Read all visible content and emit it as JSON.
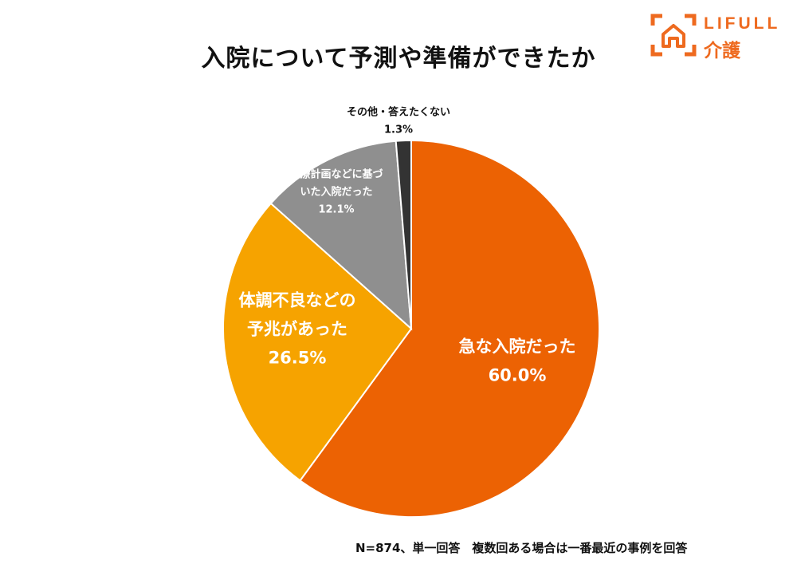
{
  "logo": {
    "word": "LIFULL",
    "sub": "介護",
    "accent": "#ee6a1f"
  },
  "note": "N=874、単一回答　複数回ある場合は一番最近の事例を回答",
  "chart_data": {
    "type": "pie",
    "title": "入院について予測や準備ができたか",
    "start": "12 o'clock, clockwise",
    "slices": [
      {
        "label_lines": [
          "急な入院だった"
        ],
        "value": 60.0,
        "value_label": "60.0%",
        "color": "#ec6203",
        "text_color": "#ffffff"
      },
      {
        "label_lines": [
          "体調不良などの",
          "予兆があった"
        ],
        "value": 26.5,
        "value_label": "26.5%",
        "color": "#f6a300",
        "text_color": "#ffffff"
      },
      {
        "label_lines": [
          "治療計画などに基づ",
          "いた入院だった"
        ],
        "value": 12.1,
        "value_label": "12.1%",
        "color": "#8f8f8f",
        "text_color": "#ffffff"
      },
      {
        "label_lines": [
          "その他・答えたくない"
        ],
        "value": 1.3,
        "value_label": "1.3%",
        "color": "#333333",
        "text_color": "#111111"
      }
    ]
  }
}
